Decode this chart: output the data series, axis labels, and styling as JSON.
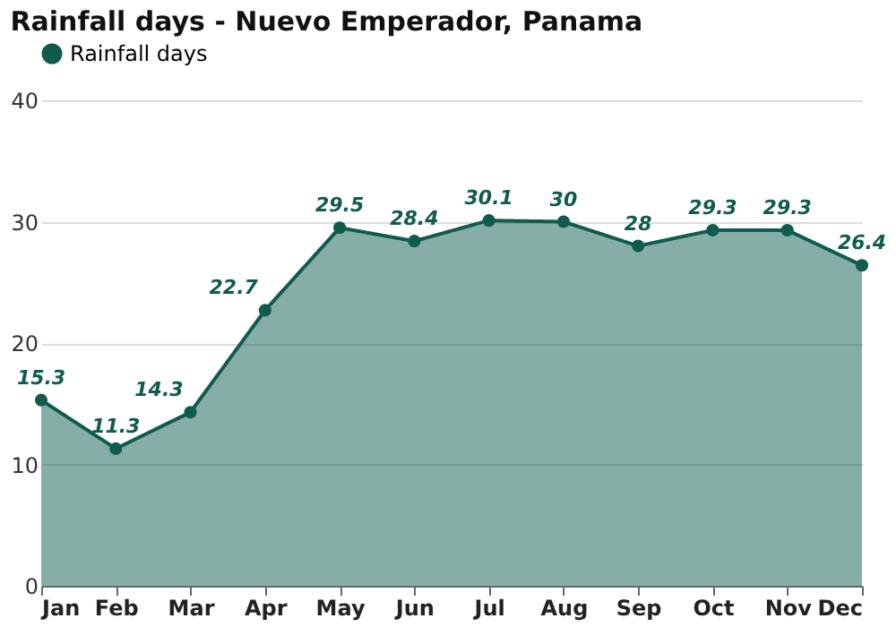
{
  "chart_data": {
    "type": "area",
    "title": "Rainfall days - Nuevo Emperador, Panama",
    "categories": [
      "Jan",
      "Feb",
      "Mar",
      "Apr",
      "May",
      "Jun",
      "Jul",
      "Aug",
      "Sep",
      "Oct",
      "Nov",
      "Dec"
    ],
    "series": [
      {
        "name": "Rainfall days",
        "color": "#0f5c4f",
        "values": [
          15.3,
          11.3,
          14.3,
          22.7,
          29.5,
          28.4,
          30.1,
          30,
          28,
          29.3,
          29.3,
          26.4
        ]
      }
    ],
    "ylim": [
      0,
      40
    ],
    "yticks": [
      0,
      10,
      20,
      30,
      40
    ],
    "grid": "y",
    "legend": "top left",
    "marker": "circle",
    "line_style": "solid",
    "data_labels": true
  }
}
